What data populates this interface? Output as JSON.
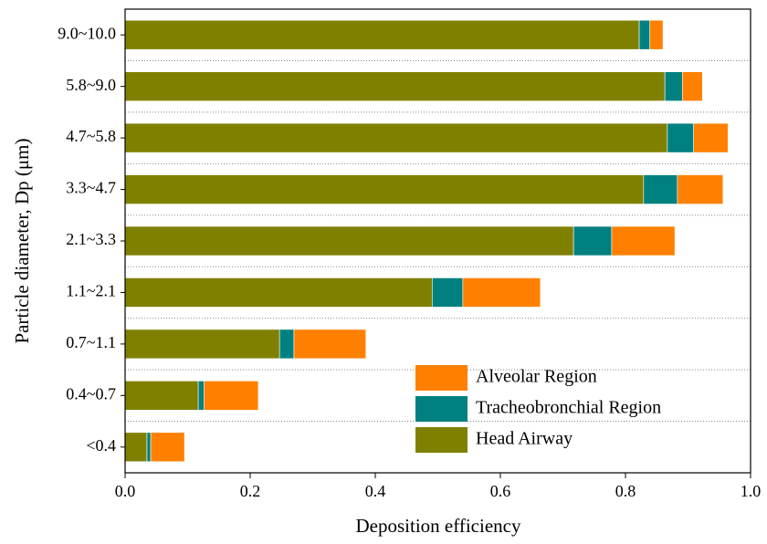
{
  "chart_data": {
    "type": "stacked-barh",
    "x_label": "Deposition efficiency",
    "y_label": "Particle diameter, Dp (μm)",
    "categories": [
      "<0.4",
      "0.4~0.7",
      "0.7~1.1",
      "1.1~2.1",
      "2.1~3.3",
      "3.3~4.7",
      "4.7~5.8",
      "5.8~9.0",
      "9.0~10.0"
    ],
    "series": [
      {
        "name": "Head Airway",
        "color": "#808000",
        "values": [
          0.035,
          0.117,
          0.247,
          0.491,
          0.717,
          0.829,
          0.867,
          0.863,
          0.822
        ]
      },
      {
        "name": "Tracheobronchial Region",
        "color": "#008080",
        "values": [
          0.006,
          0.009,
          0.023,
          0.049,
          0.061,
          0.054,
          0.042,
          0.028,
          0.017
        ]
      },
      {
        "name": "Alveolar Region",
        "color": "#ff8000",
        "values": [
          0.054,
          0.087,
          0.115,
          0.124,
          0.101,
          0.073,
          0.055,
          0.032,
          0.021
        ]
      }
    ],
    "xlim": [
      0,
      1
    ],
    "xticks": [
      {
        "value": 0,
        "label": "0.0"
      },
      0.2,
      0.4,
      0.6,
      0.8,
      {
        "value": 1,
        "label": "1.0"
      }
    ],
    "legend": "lower right"
  }
}
